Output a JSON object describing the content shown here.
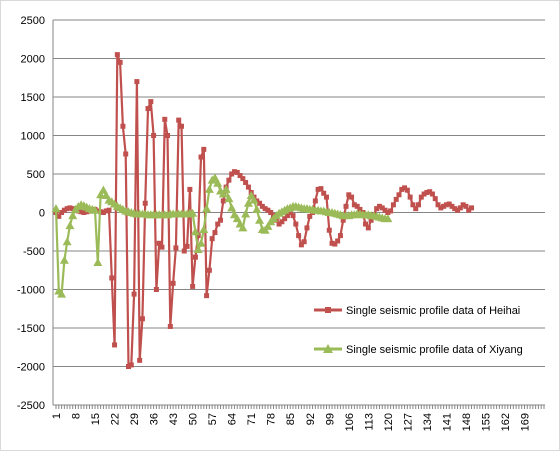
{
  "chart_data": {
    "type": "line",
    "title": "",
    "xlabel": "",
    "ylabel": "",
    "ylim": [
      -2500,
      2500
    ],
    "y_ticks": [
      2500,
      2000,
      1500,
      1000,
      500,
      0,
      -500,
      -1000,
      -1500,
      -2000,
      -2500
    ],
    "x_range": [
      1,
      176
    ],
    "x_tick_labels": [
      "1",
      "8",
      "15",
      "22",
      "29",
      "36",
      "43",
      "50",
      "57",
      "64",
      "71",
      "78",
      "85",
      "92",
      "99",
      "106",
      "113",
      "120",
      "127",
      "134",
      "141",
      "148",
      "155",
      "162",
      "169"
    ],
    "grid": "horizontal major gridlines",
    "legend_position": "right, mid-lower",
    "series": [
      {
        "name": "Single seismic profile data of Heihai",
        "color": "#c0504d",
        "marker": "square",
        "points": [
          [
            1,
            0
          ],
          [
            2,
            -50
          ],
          [
            3,
            0
          ],
          [
            4,
            30
          ],
          [
            5,
            50
          ],
          [
            6,
            60
          ],
          [
            7,
            50
          ],
          [
            8,
            30
          ],
          [
            9,
            20
          ],
          [
            10,
            10
          ],
          [
            11,
            0
          ],
          [
            12,
            10
          ],
          [
            13,
            20
          ],
          [
            14,
            30
          ],
          [
            15,
            40
          ],
          [
            16,
            20
          ],
          [
            17,
            10
          ],
          [
            18,
            0
          ],
          [
            19,
            20
          ],
          [
            20,
            30
          ],
          [
            21,
            -850
          ],
          [
            22,
            -1720
          ],
          [
            23,
            2050
          ],
          [
            24,
            1950
          ],
          [
            25,
            1120
          ],
          [
            26,
            760
          ],
          [
            27,
            -2000
          ],
          [
            28,
            -1980
          ],
          [
            29,
            -1060
          ],
          [
            30,
            1700
          ],
          [
            31,
            -1920
          ],
          [
            32,
            -1380
          ],
          [
            33,
            120
          ],
          [
            34,
            1350
          ],
          [
            35,
            1440
          ],
          [
            36,
            1000
          ],
          [
            37,
            -1000
          ],
          [
            38,
            -400
          ],
          [
            39,
            -450
          ],
          [
            40,
            1210
          ],
          [
            41,
            1000
          ],
          [
            42,
            -1480
          ],
          [
            43,
            -920
          ],
          [
            44,
            -460
          ],
          [
            45,
            1200
          ],
          [
            46,
            1120
          ],
          [
            47,
            -500
          ],
          [
            48,
            -440
          ],
          [
            49,
            300
          ],
          [
            50,
            -960
          ],
          [
            51,
            -580
          ],
          [
            52,
            -300
          ],
          [
            53,
            720
          ],
          [
            54,
            820
          ],
          [
            55,
            -1080
          ],
          [
            56,
            -750
          ],
          [
            57,
            -340
          ],
          [
            58,
            -260
          ],
          [
            59,
            -150
          ],
          [
            60,
            -100
          ],
          [
            61,
            150
          ],
          [
            62,
            330
          ],
          [
            63,
            420
          ],
          [
            64,
            500
          ],
          [
            65,
            530
          ],
          [
            66,
            520
          ],
          [
            67,
            480
          ],
          [
            68,
            440
          ],
          [
            69,
            390
          ],
          [
            70,
            330
          ],
          [
            71,
            260
          ],
          [
            72,
            200
          ],
          [
            73,
            150
          ],
          [
            74,
            120
          ],
          [
            75,
            80
          ],
          [
            76,
            50
          ],
          [
            77,
            30
          ],
          [
            78,
            0
          ],
          [
            79,
            -40
          ],
          [
            80,
            -100
          ],
          [
            81,
            -150
          ],
          [
            82,
            -120
          ],
          [
            83,
            -80
          ],
          [
            84,
            -40
          ],
          [
            85,
            0
          ],
          [
            86,
            -40
          ],
          [
            87,
            -150
          ],
          [
            88,
            -300
          ],
          [
            89,
            -420
          ],
          [
            90,
            -380
          ],
          [
            91,
            -200
          ],
          [
            92,
            -50
          ],
          [
            93,
            0
          ],
          [
            94,
            150
          ],
          [
            95,
            300
          ],
          [
            96,
            310
          ],
          [
            97,
            250
          ],
          [
            98,
            200
          ],
          [
            99,
            -230
          ],
          [
            100,
            -400
          ],
          [
            101,
            -410
          ],
          [
            102,
            -370
          ],
          [
            103,
            -300
          ],
          [
            104,
            -100
          ],
          [
            105,
            80
          ],
          [
            106,
            230
          ],
          [
            107,
            200
          ],
          [
            108,
            100
          ],
          [
            109,
            80
          ],
          [
            110,
            40
          ],
          [
            111,
            0
          ],
          [
            112,
            -150
          ],
          [
            113,
            -200
          ],
          [
            114,
            -100
          ],
          [
            115,
            -30
          ],
          [
            116,
            50
          ],
          [
            117,
            80
          ],
          [
            118,
            60
          ],
          [
            119,
            30
          ],
          [
            120,
            0
          ],
          [
            121,
            20
          ],
          [
            122,
            100
          ],
          [
            123,
            170
          ],
          [
            124,
            230
          ],
          [
            125,
            300
          ],
          [
            126,
            320
          ],
          [
            127,
            290
          ],
          [
            128,
            200
          ],
          [
            129,
            100
          ],
          [
            130,
            50
          ],
          [
            131,
            100
          ],
          [
            132,
            200
          ],
          [
            133,
            240
          ],
          [
            134,
            260
          ],
          [
            135,
            270
          ],
          [
            136,
            240
          ],
          [
            137,
            180
          ],
          [
            138,
            100
          ],
          [
            139,
            60
          ],
          [
            140,
            80
          ],
          [
            141,
            100
          ],
          [
            142,
            110
          ],
          [
            143,
            80
          ],
          [
            144,
            50
          ],
          [
            145,
            30
          ],
          [
            146,
            60
          ],
          [
            147,
            100
          ],
          [
            148,
            80
          ],
          [
            149,
            30
          ],
          [
            150,
            60
          ]
        ]
      },
      {
        "name": "Single seismic profile data of Xiyang",
        "color": "#9bbb59",
        "marker": "triangle",
        "points": [
          [
            1,
            50
          ],
          [
            2,
            -1020
          ],
          [
            3,
            -1060
          ],
          [
            4,
            -620
          ],
          [
            5,
            -380
          ],
          [
            6,
            -170
          ],
          [
            7,
            -40
          ],
          [
            8,
            40
          ],
          [
            9,
            80
          ],
          [
            10,
            100
          ],
          [
            11,
            90
          ],
          [
            12,
            70
          ],
          [
            13,
            50
          ],
          [
            14,
            40
          ],
          [
            15,
            30
          ],
          [
            16,
            -650
          ],
          [
            17,
            230
          ],
          [
            18,
            290
          ],
          [
            19,
            220
          ],
          [
            20,
            160
          ],
          [
            21,
            140
          ],
          [
            22,
            110
          ],
          [
            23,
            80
          ],
          [
            24,
            60
          ],
          [
            25,
            40
          ],
          [
            26,
            20
          ],
          [
            27,
            10
          ],
          [
            28,
            0
          ],
          [
            29,
            -10
          ],
          [
            30,
            -20
          ],
          [
            31,
            -20
          ],
          [
            32,
            -20
          ],
          [
            33,
            -20
          ],
          [
            34,
            -30
          ],
          [
            35,
            -30
          ],
          [
            36,
            -30
          ],
          [
            37,
            -30
          ],
          [
            38,
            -30
          ],
          [
            39,
            -30
          ],
          [
            40,
            -30
          ],
          [
            41,
            -30
          ],
          [
            42,
            -20
          ],
          [
            43,
            -20
          ],
          [
            44,
            -20
          ],
          [
            45,
            -20
          ],
          [
            46,
            -20
          ],
          [
            47,
            -20
          ],
          [
            48,
            -20
          ],
          [
            49,
            -10
          ],
          [
            50,
            -10
          ],
          [
            51,
            -250
          ],
          [
            52,
            -480
          ],
          [
            53,
            -400
          ],
          [
            54,
            -220
          ],
          [
            55,
            50
          ],
          [
            56,
            300
          ],
          [
            57,
            420
          ],
          [
            58,
            450
          ],
          [
            59,
            380
          ],
          [
            60,
            280
          ],
          [
            61,
            240
          ],
          [
            62,
            300
          ],
          [
            63,
            180
          ],
          [
            64,
            60
          ],
          [
            65,
            -30
          ],
          [
            66,
            -80
          ],
          [
            67,
            -150
          ],
          [
            68,
            -200
          ],
          [
            69,
            -20
          ],
          [
            70,
            120
          ],
          [
            71,
            220
          ],
          [
            72,
            160
          ],
          [
            73,
            40
          ],
          [
            74,
            -100
          ],
          [
            75,
            -220
          ],
          [
            76,
            -230
          ],
          [
            77,
            -180
          ],
          [
            78,
            -120
          ],
          [
            79,
            -80
          ],
          [
            80,
            -40
          ],
          [
            81,
            -10
          ],
          [
            82,
            10
          ],
          [
            83,
            30
          ],
          [
            84,
            50
          ],
          [
            85,
            60
          ],
          [
            86,
            80
          ],
          [
            87,
            80
          ],
          [
            88,
            70
          ],
          [
            89,
            60
          ],
          [
            90,
            50
          ],
          [
            91,
            50
          ],
          [
            92,
            40
          ],
          [
            93,
            40
          ],
          [
            94,
            30
          ],
          [
            95,
            30
          ],
          [
            96,
            20
          ],
          [
            97,
            20
          ],
          [
            98,
            10
          ],
          [
            99,
            0
          ],
          [
            100,
            0
          ],
          [
            101,
            -10
          ],
          [
            102,
            -20
          ],
          [
            103,
            -30
          ],
          [
            104,
            -40
          ],
          [
            105,
            -40
          ],
          [
            106,
            -40
          ],
          [
            107,
            -30
          ],
          [
            108,
            -30
          ],
          [
            109,
            -20
          ],
          [
            110,
            -20
          ],
          [
            111,
            -30
          ],
          [
            112,
            -30
          ],
          [
            113,
            -30
          ],
          [
            114,
            -40
          ],
          [
            115,
            -40
          ],
          [
            116,
            -50
          ],
          [
            117,
            -60
          ],
          [
            118,
            -70
          ],
          [
            119,
            -80
          ],
          [
            120,
            -80
          ]
        ]
      }
    ]
  }
}
